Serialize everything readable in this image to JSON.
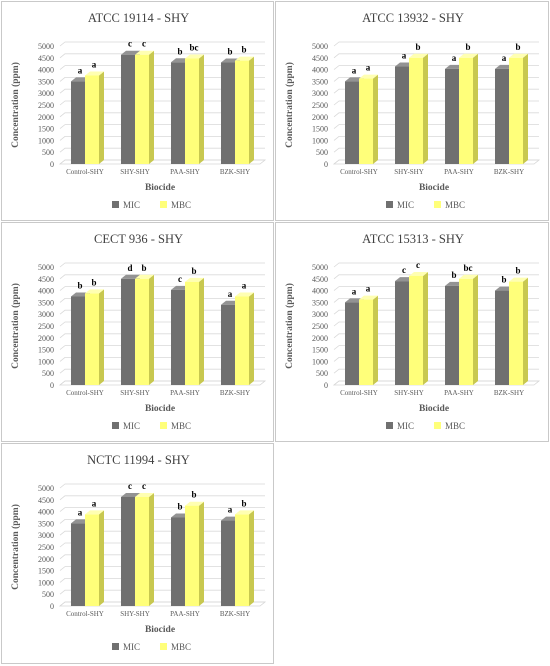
{
  "colors": {
    "mic": "#707070",
    "mic_side": "#4f4f4f",
    "mic_top": "#939393",
    "mbc": "#ffff7a",
    "mbc_side": "#c8c850",
    "mbc_top": "#ffffb2",
    "grid": "#d9d9d9",
    "floor": "#d6d6d6"
  },
  "legend": {
    "mic": "MIC",
    "mbc": "MBC"
  },
  "chart_data": [
    {
      "type": "bar",
      "title": "ATCC 19114 - SHY",
      "xlabel": "Biocide",
      "ylabel": "Concentration (ppm)",
      "ylim": [
        0,
        5000
      ],
      "yticks": [
        "0",
        "500",
        "1000",
        "1500",
        "2000",
        "2500",
        "3000",
        "3500",
        "4000",
        "4500",
        "5000"
      ],
      "categories": [
        "Control-SHY",
        "SHY-SHY",
        "PAA-SHY",
        "BZK-SHY"
      ],
      "series": [
        {
          "name": "MIC",
          "values": [
            3500,
            4630,
            4310,
            4300
          ],
          "labels": [
            "a",
            "c",
            "b",
            "b"
          ]
        },
        {
          "name": "MBC",
          "values": [
            3750,
            4630,
            4470,
            4380
          ],
          "labels": [
            "a",
            "c",
            "bc",
            "b"
          ]
        }
      ],
      "legend_position": "bottom"
    },
    {
      "type": "bar",
      "title": "ATCC 13932 - SHY",
      "xlabel": "Biocide",
      "ylabel": "Concentration (ppm)",
      "ylim": [
        0,
        5000
      ],
      "yticks": [
        "0",
        "500",
        "1000",
        "1500",
        "2000",
        "2500",
        "3000",
        "3500",
        "4000",
        "4500",
        "5000"
      ],
      "categories": [
        "Control-SHY",
        "SHY-SHY",
        "PAA-SHY",
        "BZK-SHY"
      ],
      "series": [
        {
          "name": "MIC",
          "values": [
            3500,
            4130,
            4030,
            4030
          ],
          "labels": [
            "a",
            "a",
            "a",
            "a"
          ]
        },
        {
          "name": "MBC",
          "values": [
            3620,
            4500,
            4500,
            4500
          ],
          "labels": [
            "a",
            "b",
            "b",
            "b"
          ]
        }
      ],
      "legend_position": "bottom"
    },
    {
      "type": "bar",
      "title": "CECT 936 - SHY",
      "xlabel": "Biocide",
      "ylabel": "Concentration (ppm)",
      "ylim": [
        0,
        5000
      ],
      "yticks": [
        "0",
        "500",
        "1000",
        "1500",
        "2000",
        "2500",
        "3000",
        "3500",
        "4000",
        "4500",
        "5000"
      ],
      "categories": [
        "Control-SHY",
        "SHY-SHY",
        "PAA-SHY",
        "BZK-SHY"
      ],
      "series": [
        {
          "name": "MIC",
          "values": [
            3750,
            4500,
            4030,
            3400
          ],
          "labels": [
            "b",
            "d",
            "c",
            "a"
          ]
        },
        {
          "name": "MBC",
          "values": [
            3880,
            4500,
            4370,
            3750
          ],
          "labels": [
            "b",
            "b",
            "b",
            "a"
          ]
        }
      ],
      "legend_position": "bottom"
    },
    {
      "type": "bar",
      "title": "ATCC 15313 - SHY",
      "xlabel": "Biocide",
      "ylabel": "Concentration (ppm)",
      "ylim": [
        0,
        5000
      ],
      "yticks": [
        "0",
        "500",
        "1000",
        "1500",
        "2000",
        "2500",
        "3000",
        "3500",
        "4000",
        "4500",
        "5000"
      ],
      "categories": [
        "Control-SHY",
        "SHY-SHY",
        "PAA-SHY",
        "BZK-SHY"
      ],
      "series": [
        {
          "name": "MIC",
          "values": [
            3500,
            4400,
            4200,
            4000
          ],
          "labels": [
            "a",
            "c",
            "b",
            "b"
          ]
        },
        {
          "name": "MBC",
          "values": [
            3620,
            4620,
            4500,
            4380
          ],
          "labels": [
            "a",
            "c",
            "bc",
            "b"
          ]
        }
      ],
      "legend_position": "bottom"
    },
    {
      "type": "bar",
      "title": "NCTC 11994 - SHY",
      "xlabel": "Biocide",
      "ylabel": "Concentration (ppm)",
      "ylim": [
        0,
        5000
      ],
      "yticks": [
        "0",
        "500",
        "1000",
        "1500",
        "2000",
        "2500",
        "3000",
        "3500",
        "4000",
        "4500",
        "5000"
      ],
      "categories": [
        "Control-SHY",
        "SHY-SHY",
        "PAA-SHY",
        "BZK-SHY"
      ],
      "series": [
        {
          "name": "MIC",
          "values": [
            3500,
            4620,
            3750,
            3620
          ],
          "labels": [
            "a",
            "c",
            "b",
            "a"
          ]
        },
        {
          "name": "MBC",
          "values": [
            3880,
            4620,
            4250,
            3880
          ],
          "labels": [
            "a",
            "c",
            "b",
            "b"
          ]
        }
      ],
      "legend_position": "bottom"
    }
  ]
}
